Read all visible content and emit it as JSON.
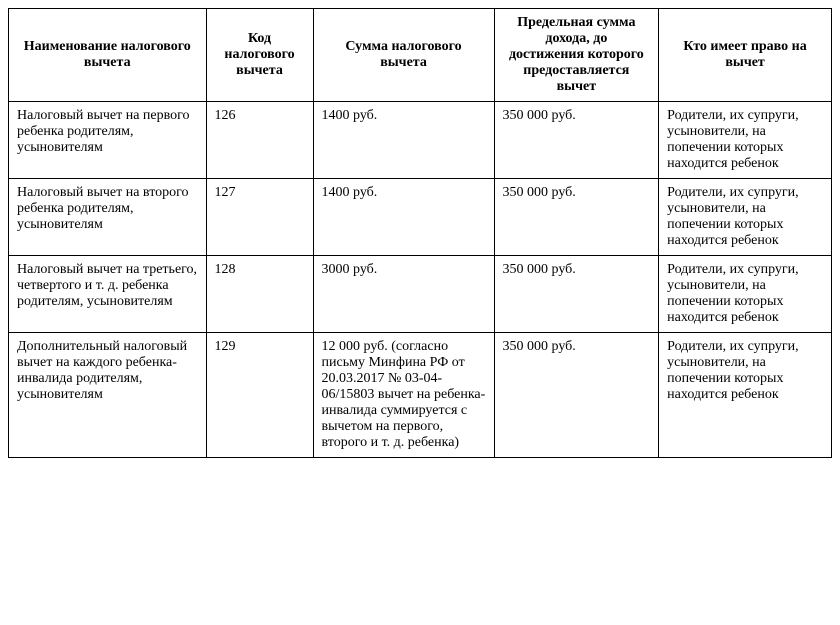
{
  "table": {
    "columns": [
      {
        "label": "Наименование налогового вычета",
        "width": "24%"
      },
      {
        "label": "Код налогового вычета",
        "width": "13%"
      },
      {
        "label": "Сумма налогового вычета",
        "width": "22%"
      },
      {
        "label": "Предельная сумма дохода, до достижения которого предоставляется вычет",
        "width": "20%"
      },
      {
        "label": "Кто имеет право на вычет",
        "width": "21%"
      }
    ],
    "rows": [
      {
        "name": "Налоговый вычет на первого ребенка родителям, усыновителям",
        "code": "126",
        "amount": "1400 руб.",
        "limit": "350 000 руб.",
        "eligibility": "Родители, их супруги, усыновители, на попечении которых находится ребенок"
      },
      {
        "name": "Налоговый вычет на второго ребенка родителям, усыновителям",
        "code": "127",
        "amount": "1400 руб.",
        "limit": "350 000 руб.",
        "eligibility": "Родители, их супруги, усыновители, на попечении которых находится ребенок"
      },
      {
        "name": "Налоговый вычет на третьего, четвертого и т. д. ребенка родителям, усыновителям",
        "code": "128",
        "amount": "3000 руб.",
        "limit": "350 000 руб.",
        "eligibility": "Родители, их супруги, усыновители, на попечении которых находится ребенок"
      },
      {
        "name": "Дополнительный налоговый вычет на каждого ребенка-инвалида родителям, усыновителям",
        "code": "129",
        "amount": "12 000 руб. (согласно письму Минфина РФ от 20.03.2017 № 03-04-06/15803 вычет на ребенка-инвалида суммируется с вычетом на первого, второго и т. д. ребенка)",
        "limit": "350 000 руб.",
        "eligibility": "Родители, их супруги, усыновители, на попечении которых находится ребенок"
      }
    ],
    "styling": {
      "font_family": "Times New Roman",
      "font_size_pt": 11,
      "border_color": "#000000",
      "header_font_weight": "bold",
      "header_text_align": "center",
      "cell_text_align": "left",
      "cell_vertical_align": "top",
      "background_color": "#ffffff",
      "text_color": "#000000"
    }
  }
}
